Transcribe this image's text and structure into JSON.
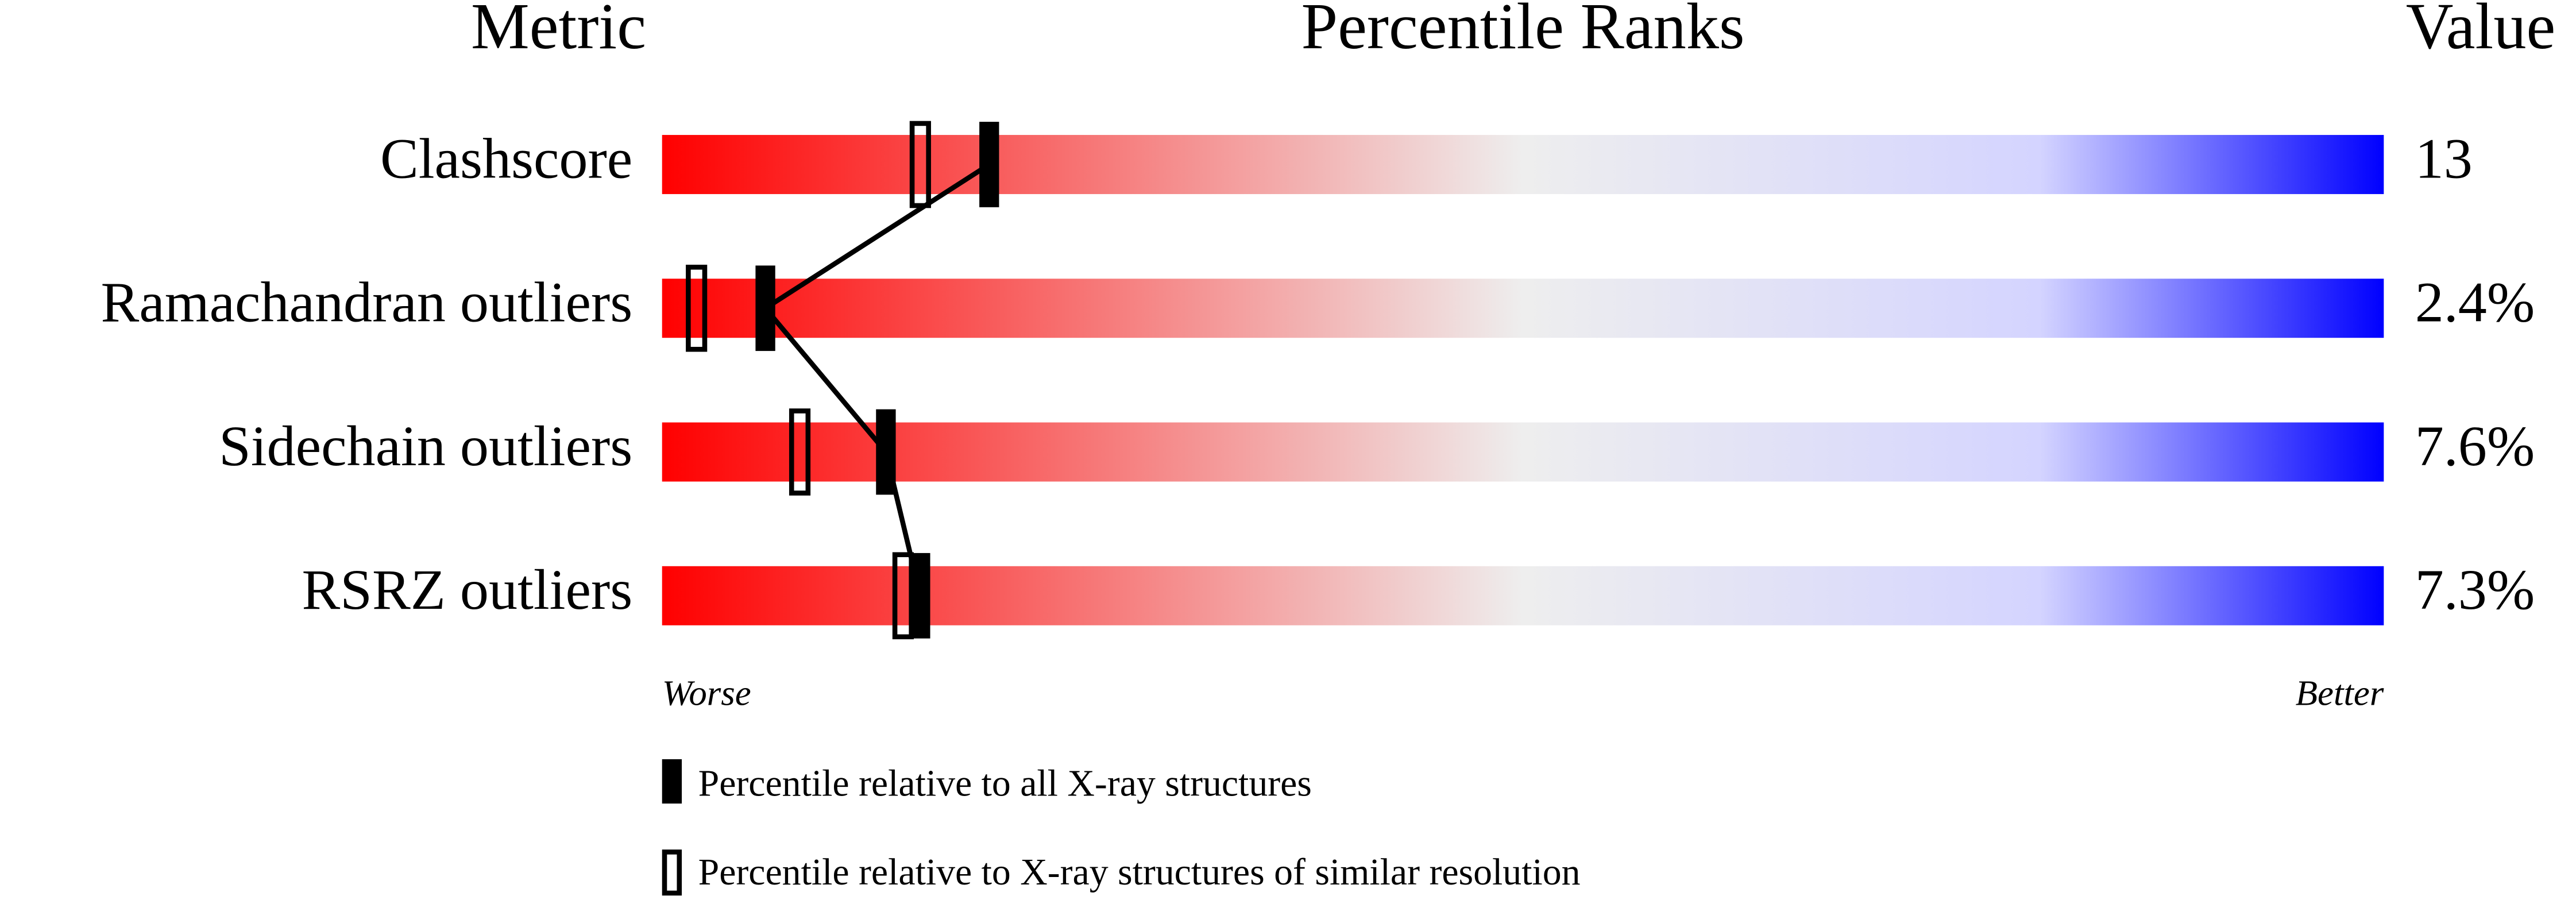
{
  "chart_data": {
    "type": "percentile",
    "header_metric": "Metric",
    "title": "Percentile Ranks",
    "header_value": "Value",
    "categories": [
      "Clashscore",
      "Ramachandran outliers",
      "Sidechain outliers",
      "RSRZ outliers"
    ],
    "metric_values": [
      "13",
      "2.4%",
      "7.6%",
      "7.3%"
    ],
    "series": [
      {
        "name": "Percentile relative to all X-ray structures",
        "color": "#000000",
        "values": [
          19,
          6,
          13,
          15
        ]
      },
      {
        "name": "Percentile relative to X-ray structures of similar resolution",
        "color": "#000000",
        "values": [
          15,
          2,
          8,
          14
        ]
      }
    ],
    "xlim": [
      0,
      100
    ],
    "low_label": "Worse",
    "high_label": "Better"
  }
}
